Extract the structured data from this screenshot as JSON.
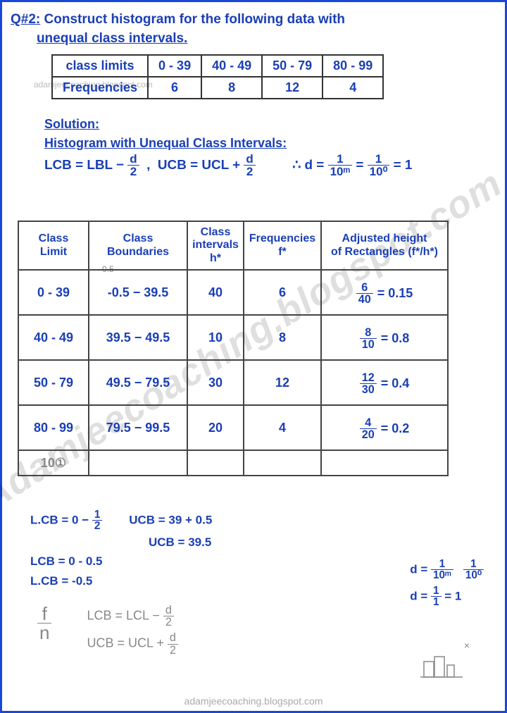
{
  "colors": {
    "ink_blue": "#1a3fb5",
    "pencil": "#888888",
    "border_blue": "#1848d8",
    "table_border": "#333333",
    "watermark_gray": "#bbbbbb",
    "background": "#ffffff"
  },
  "typography": {
    "base_family": "Comic Sans MS, cursive",
    "base_size_pt": 14,
    "bold": true
  },
  "question": {
    "prefix": "Q#2:",
    "line1": "Construct histogram for the following data with",
    "line2": "unequal class intervals."
  },
  "data_table": {
    "headers": [
      "class limits",
      "0 - 39",
      "40 - 49",
      "50 - 79",
      "80 - 99"
    ],
    "row_label": "Frequencies",
    "values": [
      "6",
      "8",
      "12",
      "4"
    ]
  },
  "solution": {
    "heading": "Solution:",
    "subheading": "Histogram with Unequal Class Intervals:",
    "formula_lcb": "LCB = LBL −",
    "formula_ucb": "UCB = UCL +",
    "frac_d2_num": "d",
    "frac_d2_den": "2",
    "d_calc": "∴ d =",
    "d_frac_a_num": "1",
    "d_frac_a_den": "10ᵐ",
    "d_eq": "=",
    "d_frac_b_num": "1",
    "d_frac_b_den": "10⁰",
    "d_result": "= 1"
  },
  "main_table": {
    "columns": [
      {
        "key": "limit",
        "label_l1": "Class",
        "label_l2": "Limit"
      },
      {
        "key": "bound",
        "label_l1": "Class",
        "label_l2": "Boundaries"
      },
      {
        "key": "h",
        "label_l1": "Class",
        "label_l2": "intervals",
        "label_l3": "h*"
      },
      {
        "key": "f",
        "label_l1": "Frequencies",
        "label_l2": "f*"
      },
      {
        "key": "adj",
        "label_l1": "Adjusted height",
        "label_l2": "of Rectangles (f*/h*)"
      }
    ],
    "scratch_above_cell": "-0.5",
    "rows": [
      {
        "limit": "0 - 39",
        "bound": "-0.5 − 39.5",
        "h": "40",
        "f": "6",
        "frac_num": "6",
        "frac_den": "40",
        "res": "= 0.15"
      },
      {
        "limit": "40 - 49",
        "bound": "39.5 − 49.5",
        "h": "10",
        "f": "8",
        "frac_num": "8",
        "frac_den": "10",
        "res": "= 0.8"
      },
      {
        "limit": "50 - 79",
        "bound": "49.5 − 79.5",
        "h": "30",
        "f": "12",
        "frac_num": "12",
        "frac_den": "30",
        "res": "= 0.4"
      },
      {
        "limit": "80 - 99",
        "bound": "79.5 − 99.5",
        "h": "20",
        "f": "4",
        "frac_num": "4",
        "frac_den": "20",
        "res": "= 0.2"
      }
    ],
    "footer_note": "10①"
  },
  "watermarks": {
    "small": "adamjeecoaching.blogspot.com",
    "big": "Adamjeecoaching.blogspot.com",
    "footer": "adamjeecoaching.blogspot.com"
  },
  "bottom": {
    "l1a": "L.CB = 0 −",
    "l1a_num": "1",
    "l1a_den": "2",
    "l1b": "UCB = 39 + 0.5",
    "l1c": "UCB = 39.5",
    "l2": "LCB = 0 - 0.5",
    "l3": "L.CB = -0.5",
    "side1": "d =",
    "side1_num": "1",
    "side1_den": "10ᵐ",
    "side1b_num": "1",
    "side1b_den": "10⁰",
    "side2": "d =",
    "side2_num": "1",
    "side2_den": "1",
    "side2_res": "= 1"
  },
  "pencil": {
    "fn_prefix": "f",
    "fn_den": "n",
    "lcb": "LCB = LCL −",
    "ucb": "UCB = UCL +",
    "frac_num": "d",
    "frac_den": "2",
    "x_mark": "×"
  }
}
